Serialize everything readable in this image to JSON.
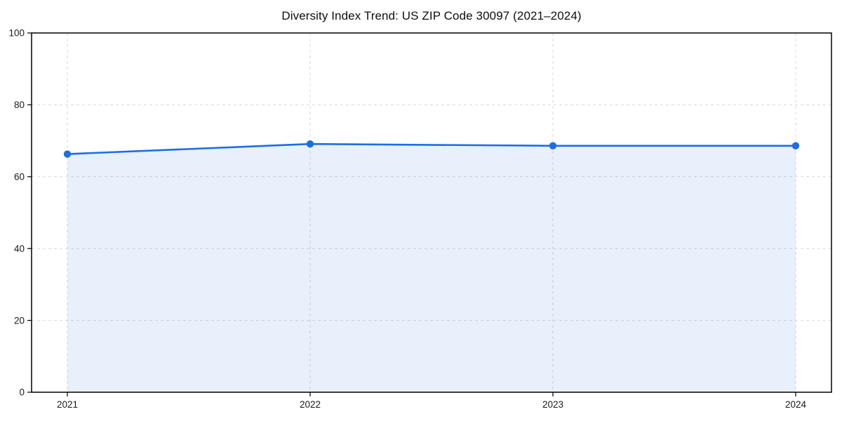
{
  "chart_data": {
    "type": "area",
    "title": "Diversity Index Trend: US ZIP Code 30097 (2021–2024)",
    "categories": [
      "2021",
      "2022",
      "2023",
      "2024"
    ],
    "values": [
      66.3,
      69.1,
      68.6,
      68.6
    ],
    "xlabel": "",
    "ylabel": "",
    "ylim": [
      0,
      100
    ],
    "yticks": [
      0,
      20,
      40,
      60,
      80,
      100
    ],
    "grid": true,
    "grid_style": "dashed",
    "legend": false,
    "marker": "circle",
    "colors": {
      "line": "#1b6ee6",
      "marker": "#1b6ee6",
      "fill_alpha": 0.1,
      "grid": "#d9d9d9",
      "spine": "#000000",
      "tick_label": "#1a1a1a",
      "title": "#0e0e0e",
      "background": "#ffffff"
    }
  }
}
